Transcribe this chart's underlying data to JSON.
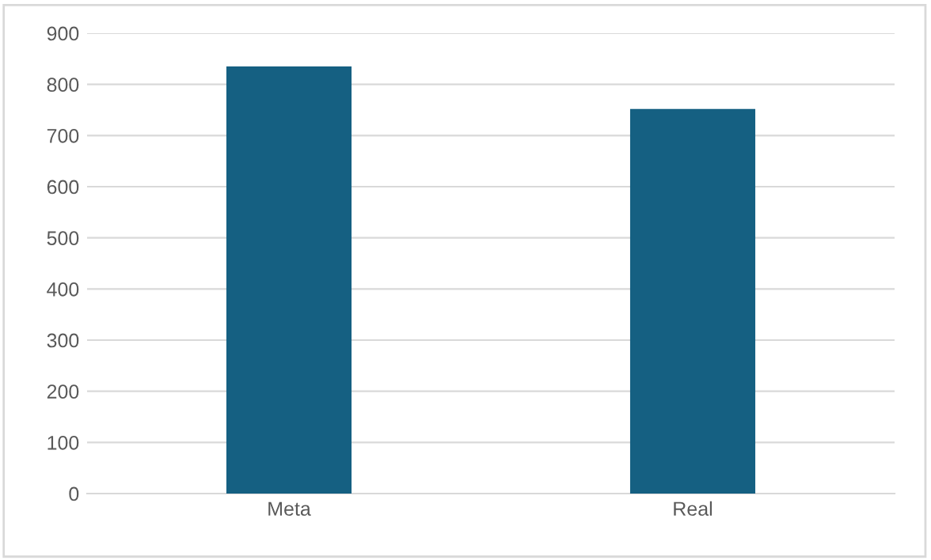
{
  "chart_data": {
    "type": "bar",
    "categories": [
      "Meta",
      "Real"
    ],
    "values": [
      835,
      752
    ],
    "color": "#156082",
    "ylim": [
      0,
      900
    ],
    "yticks": [
      0,
      100,
      200,
      300,
      400,
      500,
      600,
      700,
      800,
      900
    ],
    "grid": "y"
  }
}
